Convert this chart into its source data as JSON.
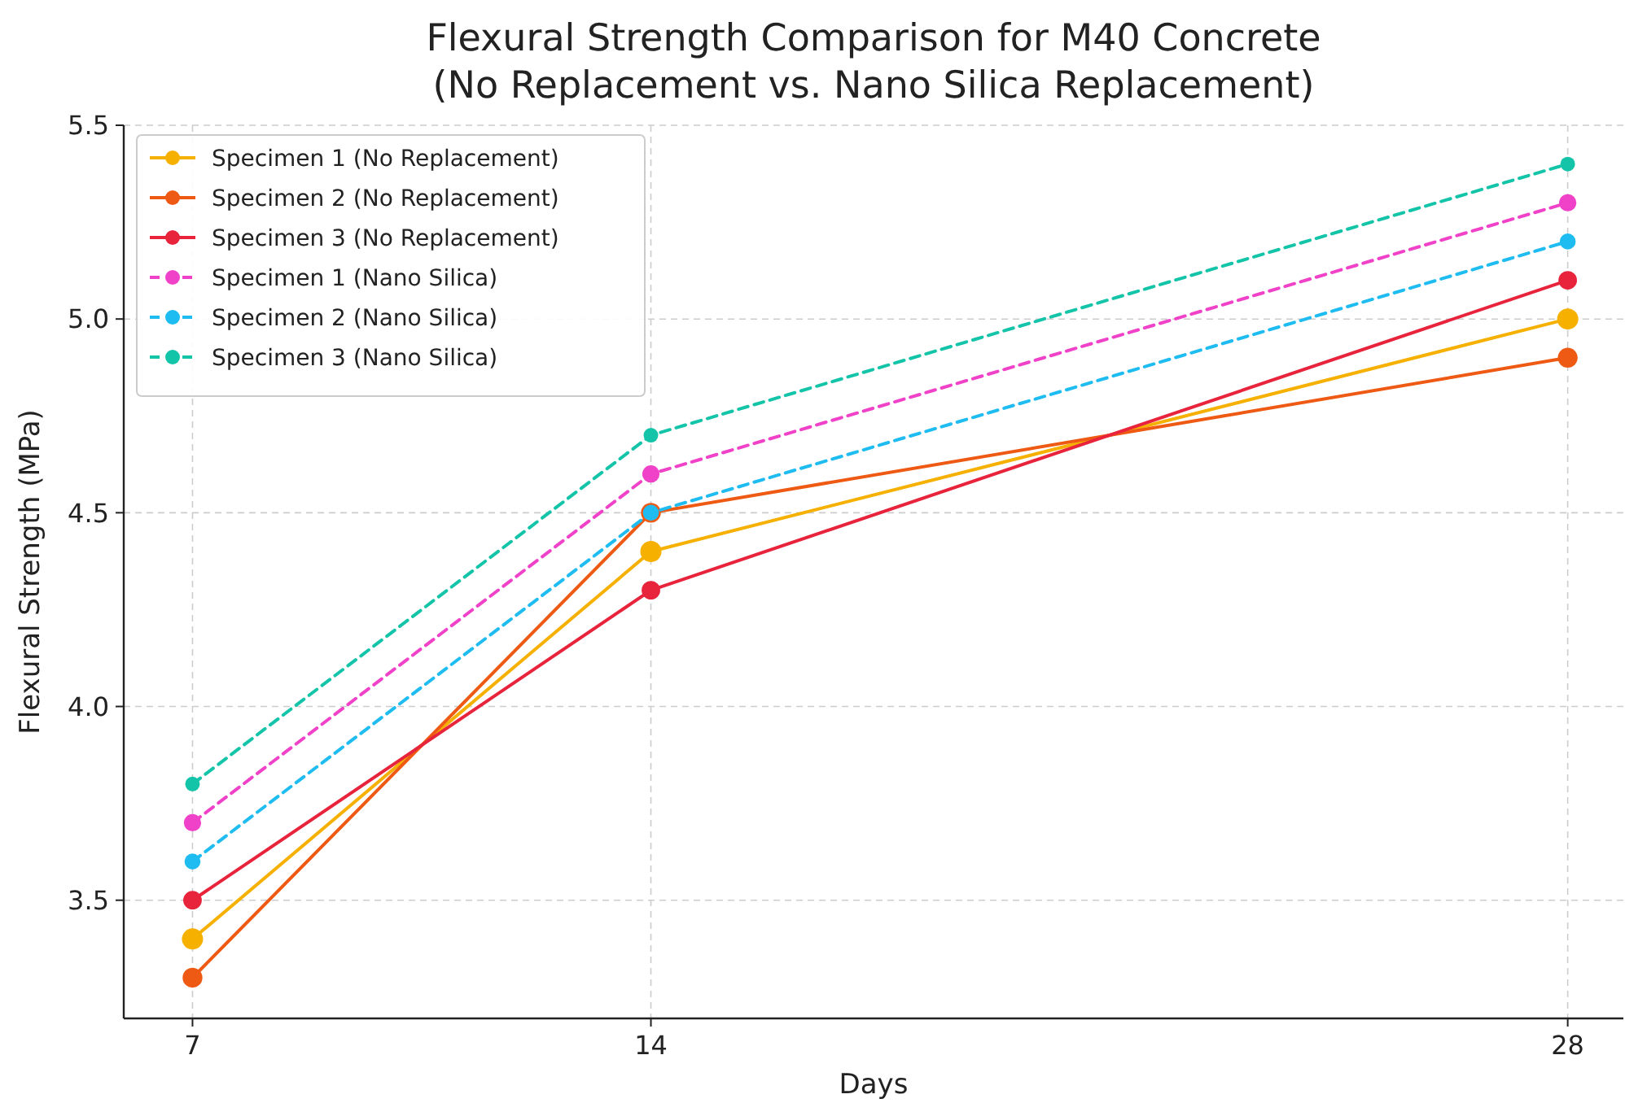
{
  "chart_data": {
    "type": "line",
    "title": "Flexural Strength Comparison for M40 Concrete\n(No Replacement vs. Nano Silica Replacement)",
    "xlabel": "Days",
    "ylabel": "Flexural Strength (MPa)",
    "x": [
      7,
      14,
      28
    ],
    "xlim": [
      5.95,
      28.85
    ],
    "xticks": [
      7,
      14,
      28
    ],
    "ylim": [
      3.195,
      5.5
    ],
    "yticks": [
      3.5,
      {
        "value": 4,
        "label": "4.0"
      },
      4.5,
      {
        "value": 5,
        "label": "5.0"
      },
      5.5
    ],
    "grid": true,
    "legend": "top left",
    "marker": "circle",
    "series": [
      {
        "name": "Specimen 1 (No Replacement)",
        "color": "#f5b000",
        "values": [
          3.4,
          4.4,
          5.0
        ],
        "line_style": "solid"
      },
      {
        "name": "Specimen 2 (No Replacement)",
        "color": "#ee5a14",
        "values": [
          3.3,
          4.5,
          4.9
        ],
        "line_style": "solid"
      },
      {
        "name": "Specimen 3 (No Replacement)",
        "color": "#e8233c",
        "values": [
          3.5,
          4.3,
          5.1
        ],
        "line_style": "solid"
      },
      {
        "name": "Specimen 1 (Nano Silica)",
        "color": "#f042c8",
        "values": [
          3.7,
          4.6,
          5.3
        ],
        "line_style": "dashed"
      },
      {
        "name": "Specimen 2 (Nano Silica)",
        "color": "#1ebcf0",
        "values": [
          3.6,
          4.5,
          5.2
        ],
        "line_style": "dashed"
      },
      {
        "name": "Specimen 3 (Nano Silica)",
        "color": "#14c4a8",
        "values": [
          3.8,
          4.7,
          5.4
        ],
        "line_style": "dashed"
      }
    ]
  }
}
